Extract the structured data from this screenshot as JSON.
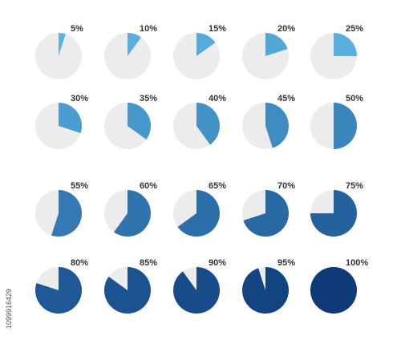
{
  "chart_data": {
    "type": "pie",
    "description": "",
    "background_color": "#ececec",
    "label_color": "#333333",
    "charts": [
      {
        "percent": 5,
        "label": "5%",
        "color": "#5eb2e0"
      },
      {
        "percent": 10,
        "label": "10%",
        "color": "#5aaedd"
      },
      {
        "percent": 15,
        "label": "15%",
        "color": "#56aadb"
      },
      {
        "percent": 20,
        "label": "20%",
        "color": "#52a6d8"
      },
      {
        "percent": 25,
        "label": "25%",
        "color": "#5ab0dc"
      },
      {
        "percent": 30,
        "label": "30%",
        "color": "#4a9dd0"
      },
      {
        "percent": 35,
        "label": "35%",
        "color": "#4697cb"
      },
      {
        "percent": 40,
        "label": "40%",
        "color": "#4292c6"
      },
      {
        "percent": 45,
        "label": "45%",
        "color": "#3e8cc1"
      },
      {
        "percent": 50,
        "label": "50%",
        "color": "#3a86bc"
      },
      {
        "percent": 55,
        "label": "55%",
        "color": "#3479b4"
      },
      {
        "percent": 60,
        "label": "60%",
        "color": "#3074af"
      },
      {
        "percent": 65,
        "label": "65%",
        "color": "#2c6eaa"
      },
      {
        "percent": 70,
        "label": "70%",
        "color": "#2868a4"
      },
      {
        "percent": 75,
        "label": "75%",
        "color": "#24629e"
      },
      {
        "percent": 80,
        "label": "80%",
        "color": "#1f5896"
      },
      {
        "percent": 85,
        "label": "85%",
        "color": "#1b5290"
      },
      {
        "percent": 90,
        "label": "90%",
        "color": "#174b89"
      },
      {
        "percent": 95,
        "label": "95%",
        "color": "#134482"
      },
      {
        "percent": 100,
        "label": "100%",
        "color": "#0e3a78"
      }
    ]
  },
  "stock_id": "1099916429"
}
